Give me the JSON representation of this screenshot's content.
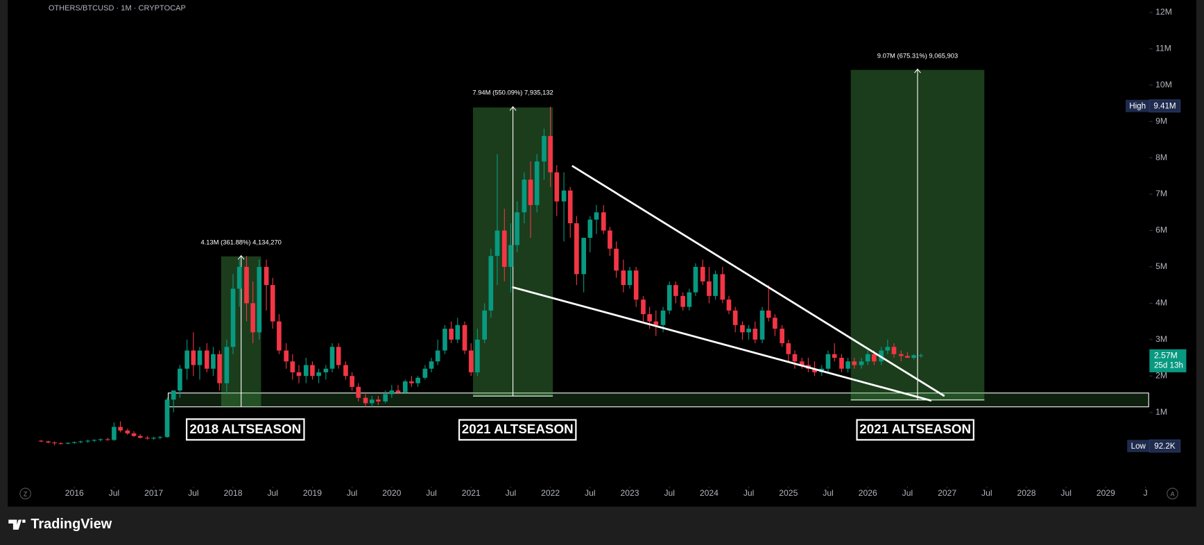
{
  "chart_data": {
    "type": "candlestick",
    "title": "OTHERS/BTCUSD · 1M · CRYPTOCAP",
    "x": [
      2015.58,
      2015.67,
      2015.75,
      2015.83,
      2015.92,
      2016.0,
      2016.08,
      2016.17,
      2016.25,
      2016.33,
      2016.42,
      2016.5,
      2016.58,
      2016.67,
      2016.75,
      2016.83,
      2016.92,
      2017.0,
      2017.08,
      2017.17,
      2017.25,
      2017.33,
      2017.42,
      2017.5,
      2017.58,
      2017.67,
      2017.75,
      2017.83,
      2017.92,
      2018.0,
      2018.08,
      2018.17,
      2018.25,
      2018.33,
      2018.42,
      2018.5,
      2018.58,
      2018.67,
      2018.75,
      2018.83,
      2018.92,
      2019.0,
      2019.08,
      2019.17,
      2019.25,
      2019.33,
      2019.42,
      2019.5,
      2019.58,
      2019.67,
      2019.75,
      2019.83,
      2019.92,
      2020.0,
      2020.08,
      2020.17,
      2020.25,
      2020.33,
      2020.42,
      2020.5,
      2020.58,
      2020.67,
      2020.75,
      2020.83,
      2020.92,
      2021.0,
      2021.08,
      2021.17,
      2021.25,
      2021.33,
      2021.42,
      2021.5,
      2021.58,
      2021.67,
      2021.75,
      2021.83,
      2021.92,
      2022.0,
      2022.08,
      2022.17,
      2022.25,
      2022.33,
      2022.42,
      2022.5,
      2022.58,
      2022.67,
      2022.75,
      2022.83,
      2022.92,
      2023.0,
      2023.08,
      2023.17,
      2023.25,
      2023.33,
      2023.42,
      2023.5,
      2023.58,
      2023.67,
      2023.75,
      2023.83,
      2023.92,
      2024.0,
      2024.08,
      2024.17,
      2024.25,
      2024.33,
      2024.42,
      2024.5,
      2024.58,
      2024.67,
      2024.75,
      2024.83,
      2024.92,
      2025.0,
      2025.08,
      2025.17,
      2025.25,
      2025.33,
      2025.42,
      2025.5,
      2025.58,
      2025.67,
      2025.75,
      2025.83,
      2025.92,
      2026.0,
      2026.08,
      2026.17,
      2026.25,
      2026.33,
      2026.42,
      2026.5,
      2026.58,
      2026.67
    ],
    "series": [
      {
        "up_color": "#089981",
        "down_color": "#f23645",
        "open": [
          0.22,
          0.2,
          0.17,
          0.15,
          0.14,
          0.16,
          0.18,
          0.2,
          0.22,
          0.24,
          0.26,
          0.24,
          0.6,
          0.5,
          0.42,
          0.35,
          0.3,
          0.28,
          0.3,
          0.32,
          1.35,
          1.6,
          2.2,
          2.7,
          2.3,
          2.7,
          2.2,
          2.6,
          1.8,
          2.8,
          4.4,
          5.0,
          4.0,
          3.2,
          5.0,
          4.5,
          3.5,
          2.7,
          2.4,
          2.1,
          2.0,
          2.3,
          2.0,
          2.1,
          2.2,
          2.8,
          2.3,
          2.0,
          1.7,
          1.4,
          1.25,
          1.35,
          1.3,
          1.5,
          1.6,
          1.55,
          1.85,
          1.8,
          1.95,
          2.2,
          2.4,
          2.7,
          3.3,
          3.0,
          3.4,
          2.7,
          2.1,
          3.0,
          3.8,
          5.3,
          6.0,
          5.0,
          5.6,
          6.5,
          7.4,
          6.7,
          7.9,
          8.6,
          7.6,
          6.8,
          7.1,
          6.2,
          4.8,
          5.8,
          6.3,
          6.5,
          6.0,
          5.5,
          4.9,
          4.5,
          4.9,
          4.1,
          3.7,
          3.5,
          3.4,
          3.8,
          4.5,
          4.2,
          3.9,
          4.3,
          5.0,
          4.6,
          4.2,
          4.8,
          4.1,
          3.8,
          3.4,
          3.2,
          3.3,
          3.0,
          3.8,
          3.6,
          3.3,
          2.9,
          2.6,
          2.4,
          2.3,
          2.2,
          2.1,
          2.2,
          2.6,
          2.5,
          2.2,
          2.4,
          2.3,
          2.4,
          2.6,
          2.4,
          2.7,
          2.8,
          2.6,
          2.55,
          2.5,
          2.57
        ],
        "high": [
          0.24,
          0.22,
          0.2,
          0.18,
          0.18,
          0.2,
          0.22,
          0.25,
          0.26,
          0.28,
          0.3,
          0.72,
          0.75,
          0.55,
          0.48,
          0.4,
          0.35,
          0.33,
          0.35,
          1.4,
          1.6,
          2.3,
          3.0,
          3.2,
          2.8,
          2.9,
          2.8,
          2.7,
          3.0,
          4.8,
          5.2,
          5.3,
          4.6,
          5.2,
          5.2,
          4.7,
          3.7,
          2.9,
          2.6,
          2.3,
          2.5,
          2.4,
          2.2,
          2.3,
          2.9,
          2.9,
          2.4,
          2.1,
          1.8,
          1.5,
          1.45,
          1.45,
          1.6,
          1.75,
          1.75,
          1.9,
          2.0,
          2.0,
          2.3,
          2.5,
          3.0,
          3.4,
          3.5,
          3.6,
          3.5,
          2.9,
          3.3,
          4.0,
          5.5,
          8.1,
          6.6,
          6.2,
          6.8,
          7.6,
          7.9,
          8.1,
          8.8,
          9.41,
          7.8,
          7.6,
          7.2,
          6.4,
          5.8,
          6.4,
          6.7,
          6.7,
          6.1,
          5.7,
          5.2,
          5.0,
          5.0,
          4.2,
          3.9,
          3.8,
          3.9,
          4.6,
          4.6,
          4.3,
          4.4,
          5.1,
          5.2,
          5.0,
          4.9,
          5.0,
          4.2,
          3.9,
          3.5,
          3.4,
          3.5,
          3.9,
          4.5,
          3.7,
          3.4,
          3.0,
          2.7,
          2.5,
          2.5,
          2.4,
          2.3,
          2.7,
          2.9,
          2.6,
          2.5,
          2.5,
          2.5,
          2.7,
          2.7,
          2.8,
          3.0,
          2.9,
          2.7,
          2.65,
          2.6,
          2.62
        ],
        "low": [
          0.18,
          0.15,
          0.0922,
          0.12,
          0.12,
          0.13,
          0.15,
          0.16,
          0.18,
          0.2,
          0.22,
          0.22,
          0.45,
          0.38,
          0.32,
          0.28,
          0.25,
          0.24,
          0.26,
          0.3,
          1.0,
          1.4,
          1.9,
          2.0,
          1.9,
          2.1,
          2.0,
          1.6,
          1.5,
          2.6,
          3.9,
          3.5,
          2.9,
          3.0,
          3.8,
          3.3,
          2.6,
          2.2,
          1.9,
          1.8,
          1.8,
          1.9,
          1.8,
          1.9,
          2.1,
          2.2,
          1.9,
          1.6,
          1.3,
          1.15,
          1.15,
          1.2,
          1.25,
          1.4,
          1.5,
          1.5,
          1.7,
          1.7,
          1.9,
          2.1,
          2.3,
          2.6,
          2.9,
          2.9,
          2.6,
          2.0,
          2.0,
          2.9,
          3.6,
          4.5,
          4.6,
          4.3,
          5.4,
          6.2,
          5.8,
          6.5,
          7.4,
          7.2,
          6.4,
          5.7,
          5.8,
          4.5,
          4.3,
          5.4,
          5.9,
          5.9,
          5.3,
          4.7,
          4.3,
          4.4,
          3.9,
          3.5,
          3.3,
          3.1,
          3.2,
          3.7,
          4.0,
          3.8,
          3.8,
          4.2,
          4.5,
          4.0,
          4.1,
          4.0,
          3.7,
          3.2,
          3.0,
          3.0,
          2.9,
          2.9,
          3.5,
          3.1,
          2.8,
          2.4,
          2.2,
          2.2,
          2.1,
          2.0,
          2.0,
          2.1,
          2.4,
          2.1,
          2.1,
          2.2,
          2.2,
          2.3,
          2.3,
          2.3,
          2.6,
          2.5,
          2.4,
          2.5,
          2.45,
          2.5
        ],
        "close": [
          0.2,
          0.17,
          0.15,
          0.14,
          0.16,
          0.18,
          0.2,
          0.22,
          0.24,
          0.26,
          0.24,
          0.6,
          0.5,
          0.42,
          0.35,
          0.3,
          0.28,
          0.3,
          0.32,
          1.35,
          1.6,
          2.2,
          2.7,
          2.3,
          2.7,
          2.2,
          2.6,
          1.8,
          2.8,
          4.4,
          5.0,
          4.0,
          3.2,
          5.0,
          4.5,
          3.5,
          2.7,
          2.4,
          2.1,
          2.0,
          2.3,
          2.0,
          2.1,
          2.2,
          2.8,
          2.3,
          2.0,
          1.7,
          1.4,
          1.25,
          1.35,
          1.3,
          1.5,
          1.6,
          1.55,
          1.85,
          1.8,
          1.95,
          2.2,
          2.4,
          2.7,
          3.3,
          3.0,
          3.4,
          2.7,
          2.1,
          3.0,
          3.8,
          5.3,
          6.0,
          5.0,
          5.6,
          6.5,
          7.4,
          6.7,
          7.9,
          8.6,
          7.6,
          6.8,
          7.1,
          6.2,
          4.8,
          5.8,
          6.3,
          6.5,
          6.0,
          5.5,
          4.9,
          4.5,
          4.9,
          4.1,
          3.7,
          3.5,
          3.4,
          3.8,
          4.5,
          4.2,
          3.9,
          4.3,
          5.0,
          4.6,
          4.2,
          4.8,
          4.1,
          3.8,
          3.4,
          3.2,
          3.3,
          3.0,
          3.8,
          3.6,
          3.3,
          2.9,
          2.6,
          2.4,
          2.3,
          2.2,
          2.1,
          2.2,
          2.6,
          2.5,
          2.2,
          2.4,
          2.3,
          2.4,
          2.6,
          2.4,
          2.7,
          2.8,
          2.6,
          2.55,
          2.5,
          2.57,
          2.57
        ]
      }
    ],
    "xlim": [
      2015.16,
      2029.55
    ],
    "xticks": [
      2016,
      {
        "value": 2016.5,
        "label": "Jul"
      },
      2017,
      {
        "value": 2017.5,
        "label": "Jul"
      },
      2018,
      {
        "value": 2018.5,
        "label": "Jul"
      },
      2019,
      {
        "value": 2019.5,
        "label": "Jul"
      },
      2020,
      {
        "value": 2020.5,
        "label": "Jul"
      },
      2021,
      {
        "value": 2021.5,
        "label": "Jul"
      },
      2022,
      {
        "value": 2022.5,
        "label": "Jul"
      },
      2023,
      {
        "value": 2023.5,
        "label": "Jul"
      },
      2024,
      {
        "value": 2024.5,
        "label": "Jul"
      },
      2025,
      {
        "value": 2025.5,
        "label": "Jul"
      },
      2026,
      {
        "value": 2026.5,
        "label": "Jul"
      },
      2027,
      {
        "value": 2027.5,
        "label": "Jul"
      },
      2028,
      {
        "value": 2028.5,
        "label": "Jul"
      },
      2029,
      {
        "value": 2029.5,
        "label": "J"
      }
    ],
    "ylim": [
      -0.96,
      12.34
    ],
    "yticks": [
      {
        "value": 1,
        "label": "1M"
      },
      {
        "value": 2,
        "label": "2M"
      },
      {
        "value": 3,
        "label": "3M"
      },
      {
        "value": 4,
        "label": "4M"
      },
      {
        "value": 5,
        "label": "5M"
      },
      {
        "value": 6,
        "label": "6M"
      },
      {
        "value": 7,
        "label": "7M"
      },
      {
        "value": 8,
        "label": "8M"
      },
      {
        "value": 9,
        "label": "9M"
      },
      {
        "value": 10,
        "label": "10M"
      },
      {
        "value": 11,
        "label": "11M"
      },
      {
        "value": 12,
        "label": "12M"
      }
    ],
    "grid": false
  },
  "annotations": {
    "measures": [
      "4.13M (361.88%) 4,134,270",
      "7.94M (550.09%) 7,935,132",
      "9.07M (675.31%) 9,065,903"
    ],
    "seasons": [
      "2018 ALTSEASON",
      "2021 ALTSEASON",
      "2021 ALTSEASON"
    ]
  },
  "price_labels": {
    "high": {
      "label": "High",
      "value": "9.41M"
    },
    "low": {
      "label": "Low",
      "value": "92.2K"
    },
    "last": {
      "value": "2.57M",
      "countdown": "25d 13h"
    }
  },
  "toolbar": {
    "left": "Z",
    "right": "A"
  },
  "brand": "TradingView"
}
